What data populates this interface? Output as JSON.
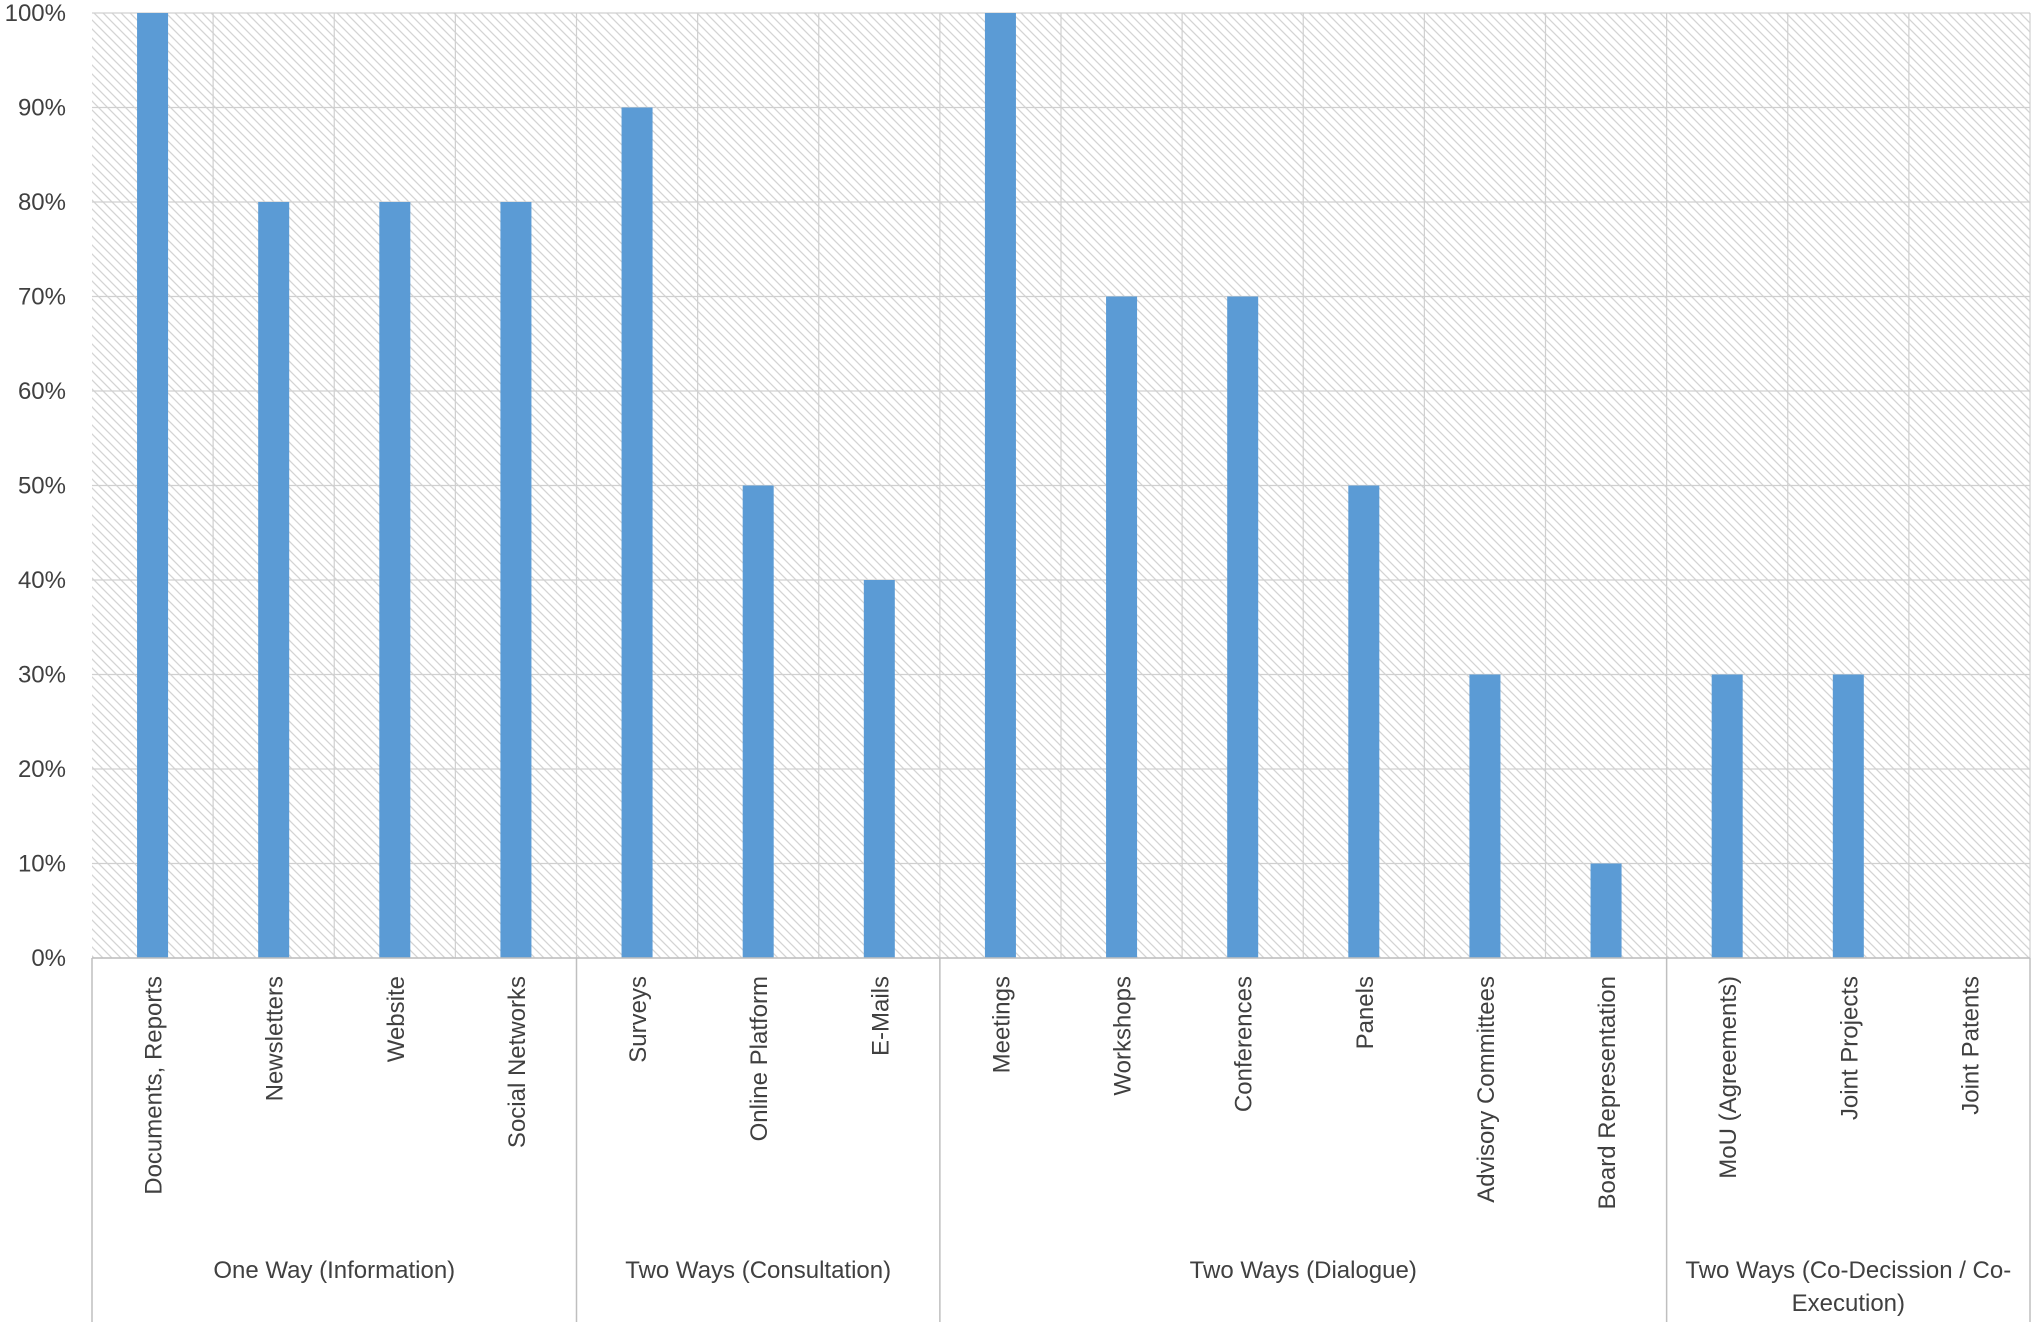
{
  "chart_data": {
    "type": "bar",
    "categories": [
      "Documents, Reports",
      "Newsletters",
      "Website",
      "Social Networks",
      "Surveys",
      "Online Platform",
      "E-Mails",
      "Meetings",
      "Workshops",
      "Conferences",
      "Panels",
      "Advisory Committees",
      "Board Representation",
      "MoU (Agreements)",
      "Joint Projects",
      "Joint Patents"
    ],
    "values": [
      100,
      80,
      80,
      80,
      90,
      50,
      40,
      100,
      70,
      70,
      50,
      30,
      10,
      30,
      30,
      0
    ],
    "groups": [
      {
        "lines": [
          "One Way (Information)"
        ],
        "count": 4
      },
      {
        "lines": [
          "Two Ways (Consultation)"
        ],
        "count": 3
      },
      {
        "lines": [
          "Two Ways (Dialogue)"
        ],
        "count": 6
      },
      {
        "lines": [
          "Two Ways (Co-Decission / Co-",
          "Execution)"
        ],
        "count": 3
      }
    ],
    "yticks": [
      "0%",
      "10%",
      "20%",
      "30%",
      "40%",
      "50%",
      "60%",
      "70%",
      "80%",
      "90%",
      "100%"
    ],
    "ylim": [
      0,
      100
    ],
    "grid": true,
    "colors": {
      "bar": "#5B9BD5",
      "grid": "#d0d0d0",
      "axis": "#bfbfbf",
      "hatch": "#d4d4d4",
      "text": "#404040"
    }
  }
}
